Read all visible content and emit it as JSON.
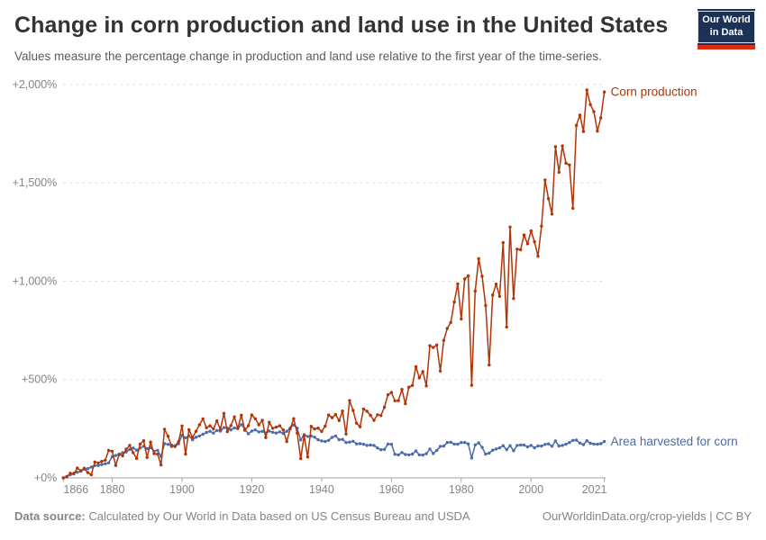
{
  "header": {
    "title": "Change in corn production and land use in the United States",
    "subtitle": "Values measure the percentage change in production and land use relative to the first year of the time-series.",
    "logo": {
      "line1": "Our World",
      "line2": "in Data"
    }
  },
  "footer": {
    "datasource_label": "Data source:",
    "datasource_text": " Calculated by Our World in Data based on US Census Bureau and USDA",
    "right_text": "OurWorldinData.org/crop-yields | CC BY"
  },
  "colors": {
    "production": "#B13507",
    "area": "#4C6BA8",
    "gridline": "#dcdcdc",
    "axis": "#a3a3a3",
    "tick_text": "#858585"
  },
  "chart_data": {
    "type": "line",
    "title": "Change in corn production and land use in the United States",
    "xlabel": "",
    "ylabel": "",
    "x_start_year": 1866,
    "x_end_year": 2021,
    "ylim": [
      0,
      2050
    ],
    "grid": "horizontal-dashed",
    "legend_position": "end-of-line-labels",
    "x_ticks": [
      1866,
      1880,
      1900,
      1920,
      1940,
      1960,
      1980,
      2000,
      2021
    ],
    "y_ticks": [
      {
        "value": 0,
        "label": "+0%"
      },
      {
        "value": 500,
        "label": "+500%"
      },
      {
        "value": 1000,
        "label": "+1,000%"
      },
      {
        "value": 1500,
        "label": "+1,500%"
      },
      {
        "value": 2000,
        "label": "+2,000%"
      }
    ],
    "unit": "% change relative to 1866",
    "series": [
      {
        "name": "Corn production",
        "color": "#B13507",
        "values": [
          0,
          5,
          24,
          20,
          50,
          36,
          49,
          27,
          16,
          81,
          76,
          84,
          90,
          140,
          135,
          63,
          121,
          112,
          146,
          165,
          128,
          99,
          172,
          189,
          104,
          182,
          123,
          121,
          66,
          247,
          212,
          160,
          163,
          184,
          264,
          121,
          245,
          207,
          237,
          270,
          300,
          255,
          265,
          249,
          290,
          246,
          328,
          235,
          266,
          310,
          251,
          319,
          242,
          266,
          320,
          301,
          270,
          293,
          205,
          283,
          252,
          258,
          265,
          244,
          185,
          250,
          301,
          228,
          98,
          215,
          106,
          262,
          249,
          253,
          236,
          263,
          320,
          306,
          322,
          292,
          340,
          223,
          393,
          343,
          278,
          260,
          350,
          339,
          318,
          293,
          321,
          317,
          359,
          423,
          434,
          392,
          393,
          450,
          377,
          461,
          470,
          565,
          509,
          541,
          468,
          672,
          663,
          676,
          543,
          699,
          760,
          790,
          894,
          986,
          808,
          1011,
          1027,
          471,
          950,
          1114,
          1025,
          876,
          574,
          930,
          985,
          923,
          1196,
          767,
          1275,
          912,
          1163,
          1160,
          1235,
          1190,
          1256,
          1200,
          1127,
          1280,
          1515,
          1420,
          1341,
          1684,
          1554,
          1688,
          1600,
          1591,
          1371,
          1792,
          1845,
          1761,
          1972,
          1898,
          1862,
          1763,
          1830,
          1962
        ]
      },
      {
        "name": "Area harvested for corn",
        "color": "#4C6BA8",
        "values": [
          0,
          8,
          16,
          24,
          29,
          34,
          45,
          47,
          55,
          63,
          63,
          68,
          72,
          77,
          108,
          114,
          119,
          128,
          132,
          144,
          152,
          141,
          152,
          161,
          149,
          154,
          135,
          140,
          109,
          174,
          170,
          167,
          159,
          174,
          216,
          204,
          213,
          194,
          207,
          213,
          222,
          231,
          237,
          228,
          241,
          238,
          256,
          253,
          244,
          254,
          251,
          271,
          248,
          224,
          238,
          244,
          234,
          237,
          228,
          238,
          232,
          228,
          234,
          226,
          237,
          253,
          269,
          253,
          193,
          220,
          211,
          213,
          207,
          194,
          188,
          185,
          191,
          206,
          213,
          194,
          196,
          180,
          182,
          186,
          173,
          174,
          171,
          165,
          167,
          165,
          152,
          143,
          145,
          172,
          171,
          120,
          117,
          129,
          119,
          117,
          121,
          137,
          117,
          116,
          123,
          147,
          124,
          140,
          160,
          162,
          180,
          181,
          172,
          171,
          180,
          180,
          173,
          101,
          168,
          178,
          155,
          121,
          126,
          141,
          147,
          153,
          164,
          144,
          164,
          138,
          165,
          167,
          167,
          158,
          165,
          153,
          163,
          162,
          170,
          173,
          161,
          188,
          162,
          165,
          171,
          180,
          191,
          192,
          177,
          169,
          189,
          176,
          172,
          171,
          174,
          185
        ]
      }
    ]
  }
}
